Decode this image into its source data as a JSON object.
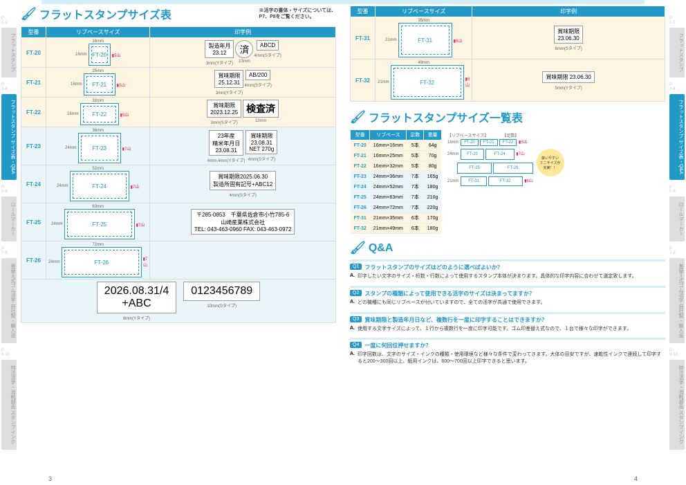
{
  "section1_title": "フラットスタンプサイズ表",
  "section1_note": "※活字の書体・サイズについては、\nP7、P8をご覧ください。",
  "section2_title": "フラットスタンプサイズ一覧表",
  "section3_title": "Q&A",
  "headers": {
    "model": "型番",
    "rib": "リブベースサイズ",
    "print": "印字例"
  },
  "rows_left": [
    {
      "model": "FT-20",
      "w": "16mm",
      "h": "16mm",
      "rib_w": 24,
      "rib_h": 24,
      "yama": "5山",
      "prints": [
        {
          "box": "製造年月\n23.12",
          "cap": "3mm(Yタイプ)"
        },
        {
          "box": "済",
          "cap": "13mm",
          "round": true
        },
        {
          "box": "ABCD",
          "cap": "4mm(Sタイプ)"
        }
      ],
      "cls": "cream"
    },
    {
      "model": "FT-21",
      "w": "25mm",
      "h": "16mm",
      "rib_w": 38,
      "rib_h": 24,
      "yama": "5山",
      "prints": [
        {
          "box": "賞味期限\n25.12.31",
          "cap": "3mm(Yタイプ)"
        },
        {
          "box": "AB/200",
          "cap": "4mm(Sタイプ)"
        }
      ],
      "cls": "cream"
    },
    {
      "model": "FT-22",
      "w": "32mm",
      "h": "16mm",
      "rib_w": 48,
      "rib_h": 24,
      "yama": "5山",
      "prints": [
        {
          "box": "賞味期限\n2023.12.25",
          "cap": "3mm(Sタイプ)"
        },
        {
          "box": "検査済",
          "cap": "13mm",
          "big": true
        }
      ],
      "cls": "cream"
    },
    {
      "model": "FT-23",
      "w": "36mm",
      "h": "24mm",
      "rib_w": 54,
      "rib_h": 36,
      "yama": "7山",
      "prints": [
        {
          "box": "23年産\n精米年月日\n23.08.31",
          "cap": "6mm,4mm(Yタイプ)"
        },
        {
          "box": "賞味期限\n23.08.31\nNET 270g",
          "cap": "4mm(Sタイプ)"
        }
      ],
      "cls": "blue"
    },
    {
      "model": "FT-24",
      "w": "52mm",
      "h": "24mm",
      "rib_w": 78,
      "rib_h": 36,
      "yama": "7山",
      "prints": [
        {
          "box": "賞味期限2025.06.30\n製造所固有記号+ABC12",
          "cap": "4mm(Sタイプ)"
        }
      ],
      "cls": "blue"
    },
    {
      "model": "FT-25",
      "w": "63mm",
      "h": "24mm",
      "rib_w": 94,
      "rib_h": 36,
      "yama": "7山",
      "prints": [
        {
          "box": "〒285-0853　千葉県佐倉市小竹785-6\n山崎産業株式会社\nTEL: 043-463-0960 FAX: 043-463-0972",
          "cap": ""
        }
      ],
      "cls": "blue"
    },
    {
      "model": "FT-26",
      "w": "72mm",
      "h": "24mm",
      "rib_w": 108,
      "rib_h": 36,
      "yama": "7山",
      "prints": [],
      "cls": "blue",
      "below": [
        {
          "box": "2026.08.31/4\n+ABC",
          "cap": "8mm(Yタイプ)"
        },
        {
          "box": "0123456789",
          "cap": "10mm(Sタイプ)"
        }
      ]
    }
  ],
  "rows_right": [
    {
      "model": "FT-31",
      "w": "35mm",
      "h": "21mm",
      "rib_w": 70,
      "rib_h": 42,
      "yama": "6山",
      "prints": [
        {
          "box": "賞味期限\n23.06.30",
          "cap": "6mm(Sタイプ)"
        }
      ],
      "cls": "cream"
    },
    {
      "model": "FT-32",
      "w": "49mm",
      "h": "21mm",
      "rib_w": 98,
      "rib_h": 42,
      "yama": "6山",
      "prints": [
        {
          "box": "賞味期限 23.06.30",
          "cap": "5mm(Yタイプ)"
        }
      ],
      "cls": "cream"
    }
  ],
  "spec_headers": [
    "型番",
    "リブベース",
    "足数",
    "重量"
  ],
  "spec_rows": [
    [
      "FT-20",
      "16mm×16mm",
      "5本",
      "64g",
      "odd"
    ],
    [
      "FT-21",
      "16mm×25mm",
      "5本",
      "70g",
      "odd"
    ],
    [
      "FT-22",
      "16mm×32mm",
      "5本",
      "80g",
      "odd"
    ],
    [
      "FT-23",
      "24mm×36mm",
      "7本",
      "165g",
      "even"
    ],
    [
      "FT-24",
      "24mm×52mm",
      "7本",
      "180g",
      "even"
    ],
    [
      "FT-25",
      "24mm×63mm",
      "7本",
      "210g",
      "even"
    ],
    [
      "FT-26",
      "24mm×72mm",
      "7本",
      "220g",
      "even"
    ],
    [
      "FT-31",
      "21mm×35mm",
      "6本",
      "170g",
      "odd"
    ],
    [
      "FT-32",
      "21mm×49mm",
      "6本",
      "180g",
      "odd"
    ]
  ],
  "diagram_label_rib": "【リブベースサイズ】",
  "diagram_label_foot": "【足数】",
  "callout_text": "扱いやすい\nミニサイズが\n充実！！",
  "qa": [
    {
      "q": "フラットスタンプのサイズはどのように選べばよいか？",
      "a": "印字したい文字のサイズ・桁数・行数によって使用するスタンプ本体が決まります。具体的な印字内容に合わせて選定致します。"
    },
    {
      "q": "スタンプの種類によって使用できる活字のサイズは決まってますか？",
      "a": "どの機種にも同じリブベースが付いていますので、全ての活字が共通で使用できます。"
    },
    {
      "q": "賞味期限と製造年月日など、複数行を一度に印字することはできますか？",
      "a": "使用する文字サイズによって、１行から複数行を一度に印字可能です。ゴム印差替え式なので、１台で様々な印字ができます。"
    },
    {
      "q": "一度に何回位押せますか？",
      "a": "印字回数は、文字のサイズ・インクの種類・使用環境など様々な条件で変わってきます。大体の目安ですが、速乾性インクで連続して印字すると200～300回以上、紙用インクは、600～700回以上印字できると思います。"
    }
  ],
  "tabs": [
    {
      "p": "P\n1-2",
      "label": "フラットスタンプ",
      "active": false
    },
    {
      "p": "P\n3-4",
      "label": "フラットスタンプ\nサイズ表・Q&A",
      "active": true
    },
    {
      "p": "P\n5-6",
      "label": "ロールマーカー",
      "active": false
    },
    {
      "p": "P\n7-8",
      "label": "差替え式ゴム活字\n自社製・輸入品",
      "active": false
    },
    {
      "p": "P\n9-10",
      "label": "特注活字・消耗部品\nスタンプインク",
      "active": false
    }
  ],
  "page_left": "3",
  "page_right": "4"
}
